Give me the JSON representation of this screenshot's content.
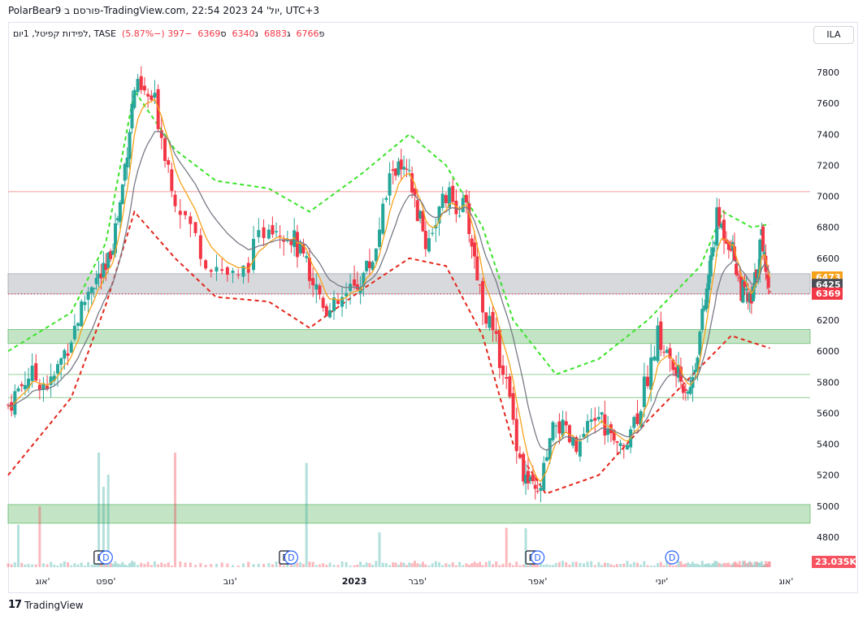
{
  "header": {
    "caption": "PolarBear9 פורסם ב-TradingView.com, 22:54 2023 יול' 24, UTC+3",
    "currency_button": "ILA"
  },
  "legend": {
    "symbol": "לפידות קפיטל, 1יום, TASE",
    "open_label": "פ",
    "open": "6766",
    "high_label": "ג",
    "high": "6883",
    "low_label": "נ",
    "low": "6340",
    "close_label": "ס",
    "close": "6369",
    "change": "−397 (−5.87%)"
  },
  "footer": {
    "brand": "TradingView"
  },
  "colors": {
    "up": "#26a69a",
    "down": "#f23645",
    "ema_fast": "#f7a21b",
    "ema_slow": "#787b86",
    "upper_band": "#3be32a",
    "lower_band": "#e3271b",
    "zone_green": "#a5d6a7",
    "zone_gray": "#c7c9cf",
    "resistance": "#f7a6a6"
  },
  "chart_data": {
    "type": "candlestick",
    "ylim": [
      4650,
      7950
    ],
    "y_ticks": [
      4800,
      5000,
      5200,
      5400,
      5600,
      5800,
      6000,
      6200,
      6400,
      6600,
      6800,
      7000,
      7200,
      7400,
      7600,
      7800
    ],
    "x_ticks": [
      {
        "label": "אוג'",
        "date": "2022-08-01"
      },
      {
        "label": "ספט'",
        "date": "2022-09-01"
      },
      {
        "label": "נוב'",
        "date": "2022-11-01"
      },
      {
        "label": "2023",
        "date": "2023-01-01",
        "bold": true
      },
      {
        "label": "פבר'",
        "date": "2023-02-01"
      },
      {
        "label": "אפר'",
        "date": "2023-04-01"
      },
      {
        "label": "יוני'",
        "date": "2023-06-01"
      },
      {
        "label": "אוג'",
        "date": "2023-08-01"
      }
    ],
    "x_range": [
      "2022-07-15",
      "2023-08-08"
    ],
    "price_labels": [
      {
        "value": "6473",
        "price": 6473,
        "color": "#f7a21b"
      },
      {
        "value": "6425",
        "price": 6425,
        "color": "#4a4d56"
      },
      {
        "value": "6369",
        "price": 6369,
        "color": "#f23645"
      }
    ],
    "volume_label": "23.035K",
    "horizontal_lines": [
      {
        "price": 7030,
        "color": "#f7a6a6"
      },
      {
        "price": 5850,
        "color": "#a5d6a7"
      },
      {
        "price": 5700,
        "color": "#a5d6a7"
      },
      {
        "price": 6369,
        "color": "#f23645",
        "dotted": true
      }
    ],
    "zones": [
      {
        "from": 6050,
        "to": 6140,
        "color": "green"
      },
      {
        "from": 6370,
        "to": 6500,
        "color": "gray"
      },
      {
        "from": 4890,
        "to": 5010,
        "color": "green"
      }
    ],
    "events": [
      {
        "type": "E",
        "date": "2022-08-29"
      },
      {
        "type": "D",
        "date": "2022-09-01"
      },
      {
        "type": "E",
        "date": "2022-11-28"
      },
      {
        "type": "D",
        "date": "2022-12-01"
      },
      {
        "type": "E",
        "date": "2023-03-29"
      },
      {
        "type": "D",
        "date": "2023-04-01"
      },
      {
        "type": "D",
        "date": "2023-06-06"
      }
    ],
    "close_path": [
      {
        "date": "2022-07-15",
        "close": 5650
      },
      {
        "date": "2022-07-25",
        "close": 5850
      },
      {
        "date": "2022-08-05",
        "close": 5780
      },
      {
        "date": "2022-08-15",
        "close": 6100
      },
      {
        "date": "2022-08-25",
        "close": 6450
      },
      {
        "date": "2022-09-01",
        "close": 6500
      },
      {
        "date": "2022-09-08",
        "close": 6950
      },
      {
        "date": "2022-09-15",
        "close": 7700
      },
      {
        "date": "2022-09-25",
        "close": 7600
      },
      {
        "date": "2022-10-05",
        "close": 7000
      },
      {
        "date": "2022-10-20",
        "close": 6600
      },
      {
        "date": "2022-11-05",
        "close": 6450
      },
      {
        "date": "2022-11-20",
        "close": 6850
      },
      {
        "date": "2022-12-01",
        "close": 6750
      },
      {
        "date": "2022-12-10",
        "close": 6500
      },
      {
        "date": "2022-12-20",
        "close": 6250
      },
      {
        "date": "2023-01-01",
        "close": 6400
      },
      {
        "date": "2023-01-10",
        "close": 6600
      },
      {
        "date": "2023-01-20",
        "close": 7200
      },
      {
        "date": "2023-01-28",
        "close": 7100
      },
      {
        "date": "2023-02-05",
        "close": 6700
      },
      {
        "date": "2023-02-15",
        "close": 7000
      },
      {
        "date": "2023-02-25",
        "close": 6900
      },
      {
        "date": "2023-03-05",
        "close": 6300
      },
      {
        "date": "2023-03-15",
        "close": 5900
      },
      {
        "date": "2023-03-25",
        "close": 5200
      },
      {
        "date": "2023-04-01",
        "close": 5050
      },
      {
        "date": "2023-04-10",
        "close": 5550
      },
      {
        "date": "2023-04-20",
        "close": 5350
      },
      {
        "date": "2023-05-01",
        "close": 5600
      },
      {
        "date": "2023-05-10",
        "close": 5350
      },
      {
        "date": "2023-05-20",
        "close": 5600
      },
      {
        "date": "2023-05-30",
        "close": 6100
      },
      {
        "date": "2023-06-08",
        "close": 5850
      },
      {
        "date": "2023-06-15",
        "close": 5750
      },
      {
        "date": "2023-06-22",
        "close": 6300
      },
      {
        "date": "2023-06-28",
        "close": 6850
      },
      {
        "date": "2023-07-05",
        "close": 6700
      },
      {
        "date": "2023-07-10",
        "close": 6400
      },
      {
        "date": "2023-07-15",
        "close": 6300
      },
      {
        "date": "2023-07-20",
        "close": 6750
      },
      {
        "date": "2023-07-24",
        "close": 6369
      }
    ],
    "upper_band": [
      {
        "date": "2022-07-15",
        "value": 6000
      },
      {
        "date": "2022-08-15",
        "value": 6250
      },
      {
        "date": "2022-09-01",
        "value": 6700
      },
      {
        "date": "2022-09-15",
        "value": 7680
      },
      {
        "date": "2022-10-05",
        "value": 7300
      },
      {
        "date": "2022-10-25",
        "value": 7100
      },
      {
        "date": "2022-11-20",
        "value": 7050
      },
      {
        "date": "2022-12-10",
        "value": 6900
      },
      {
        "date": "2023-01-05",
        "value": 7150
      },
      {
        "date": "2023-01-28",
        "value": 7400
      },
      {
        "date": "2023-02-15",
        "value": 7200
      },
      {
        "date": "2023-03-05",
        "value": 6800
      },
      {
        "date": "2023-03-20",
        "value": 6200
      },
      {
        "date": "2023-04-10",
        "value": 5850
      },
      {
        "date": "2023-05-01",
        "value": 5950
      },
      {
        "date": "2023-05-25",
        "value": 6200
      },
      {
        "date": "2023-06-20",
        "value": 6550
      },
      {
        "date": "2023-07-01",
        "value": 6900
      },
      {
        "date": "2023-07-15",
        "value": 6800
      },
      {
        "date": "2023-07-24",
        "value": 6820
      }
    ],
    "lower_band": [
      {
        "date": "2022-07-15",
        "value": 5200
      },
      {
        "date": "2022-08-15",
        "value": 5700
      },
      {
        "date": "2022-09-01",
        "value": 6300
      },
      {
        "date": "2022-09-15",
        "value": 6900
      },
      {
        "date": "2022-10-05",
        "value": 6600
      },
      {
        "date": "2022-10-25",
        "value": 6350
      },
      {
        "date": "2022-11-20",
        "value": 6320
      },
      {
        "date": "2022-12-10",
        "value": 6150
      },
      {
        "date": "2023-01-05",
        "value": 6400
      },
      {
        "date": "2023-01-28",
        "value": 6600
      },
      {
        "date": "2023-02-15",
        "value": 6550
      },
      {
        "date": "2023-03-05",
        "value": 6100
      },
      {
        "date": "2023-03-20",
        "value": 5400
      },
      {
        "date": "2023-04-05",
        "value": 5080
      },
      {
        "date": "2023-05-01",
        "value": 5200
      },
      {
        "date": "2023-05-25",
        "value": 5550
      },
      {
        "date": "2023-06-20",
        "value": 5900
      },
      {
        "date": "2023-07-05",
        "value": 6100
      },
      {
        "date": "2023-07-24",
        "value": 6020
      }
    ]
  }
}
